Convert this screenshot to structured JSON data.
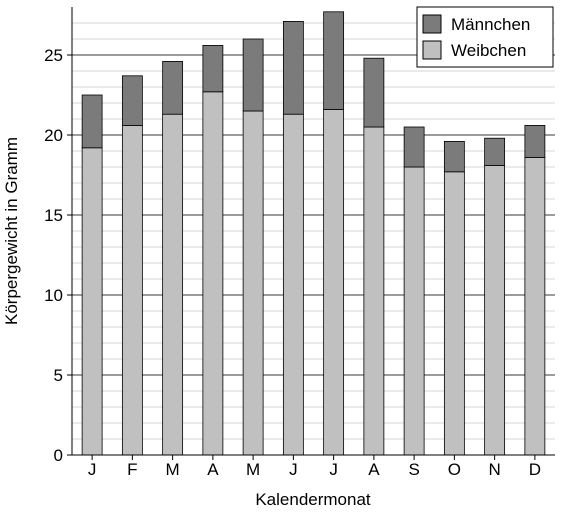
{
  "chart_data": {
    "type": "bar",
    "stacked": true,
    "categories": [
      "J",
      "F",
      "M",
      "A",
      "M",
      "J",
      "J",
      "A",
      "S",
      "O",
      "N",
      "D"
    ],
    "series": [
      {
        "name": "Weibchen",
        "color": "#c0c0c0",
        "values": [
          19.2,
          20.6,
          21.3,
          22.7,
          21.5,
          21.3,
          21.6,
          20.5,
          18.0,
          17.7,
          18.1,
          18.6
        ]
      },
      {
        "name": "Männchen",
        "color": "#7b7b7b",
        "values": [
          3.3,
          3.1,
          3.3,
          2.9,
          4.5,
          5.8,
          6.1,
          4.3,
          2.5,
          1.9,
          1.7,
          2.0
        ]
      }
    ],
    "totals": [
      22.5,
      23.7,
      24.6,
      25.6,
      26.0,
      27.1,
      27.7,
      24.8,
      20.5,
      19.6,
      19.8,
      20.6
    ],
    "xlabel": "Kalendermonat",
    "ylabel": "Körpergewicht in Gramm",
    "ylim": [
      0,
      28
    ],
    "yticks": [
      0,
      5,
      10,
      15,
      20,
      25
    ],
    "minor_grid_step": 1,
    "grid": true,
    "legend": {
      "placement": "top-right",
      "entries": [
        "Männchen",
        "Weibchen"
      ]
    }
  }
}
